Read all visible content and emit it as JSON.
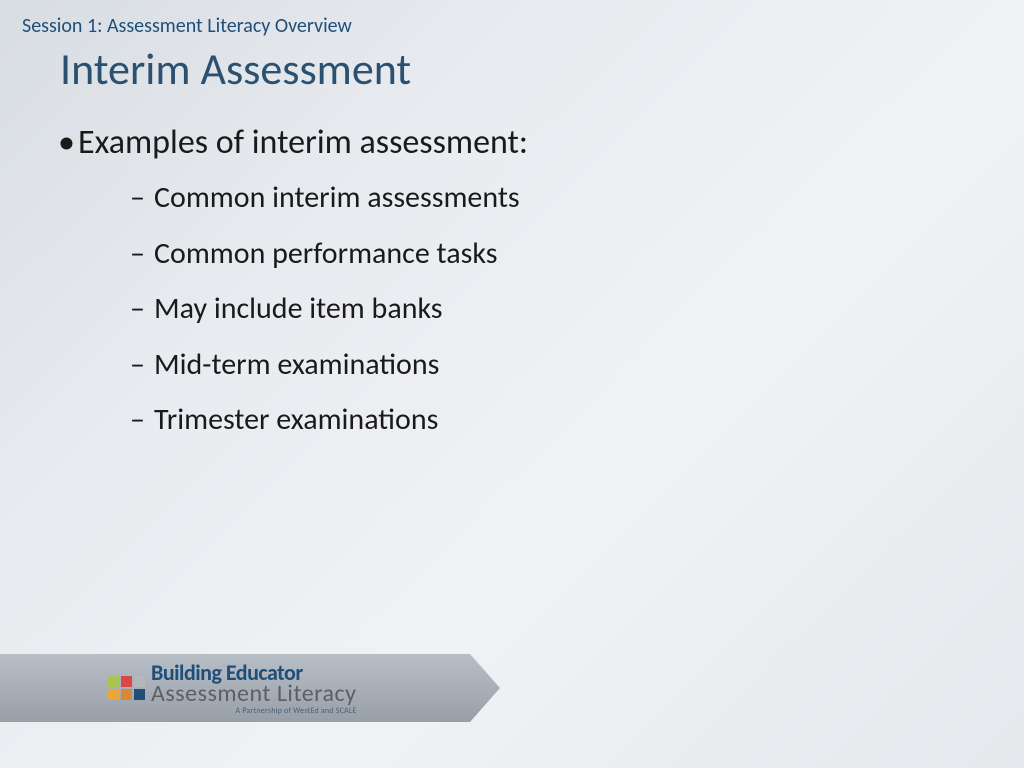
{
  "session_label": "Session 1: Assessment Literacy Overview",
  "slide_title": "Interim Assessment",
  "main_bullet": "Examples of interim assessment:",
  "sub_bullets": [
    "Common interim assessments",
    "Common performance tasks",
    "May include item banks",
    "Mid-term examinations",
    "Trimester examinations"
  ],
  "logo": {
    "line1": "Building Educator",
    "line2": "Assessment Literacy",
    "line3": "A Partnership of WestEd and SCALE",
    "square_colors": [
      "#a8c452",
      "#d94848",
      "#b4b8bc",
      "#e8a838",
      "#d88838",
      "#1f4e79"
    ]
  },
  "colors": {
    "title_color": "#2c5070",
    "session_color": "#1f4e79",
    "text_color": "#1a1a1a",
    "banner_gradient_start": "#b8bec6",
    "banner_gradient_end": "#989fa8",
    "bg_gradient_start": "#d8dde3",
    "bg_gradient_end": "#e5e8ec"
  },
  "typography": {
    "session_fontsize": 20,
    "title_fontsize": 44,
    "main_bullet_fontsize": 34,
    "sub_bullet_fontsize": 30,
    "logo_line1_fontsize": 22,
    "logo_line2_fontsize": 24,
    "logo_line3_fontsize": 8
  },
  "layout": {
    "slide_width": 1024,
    "slide_height": 768,
    "banner_width": 500,
    "banner_height": 68,
    "banner_bottom": 46
  }
}
